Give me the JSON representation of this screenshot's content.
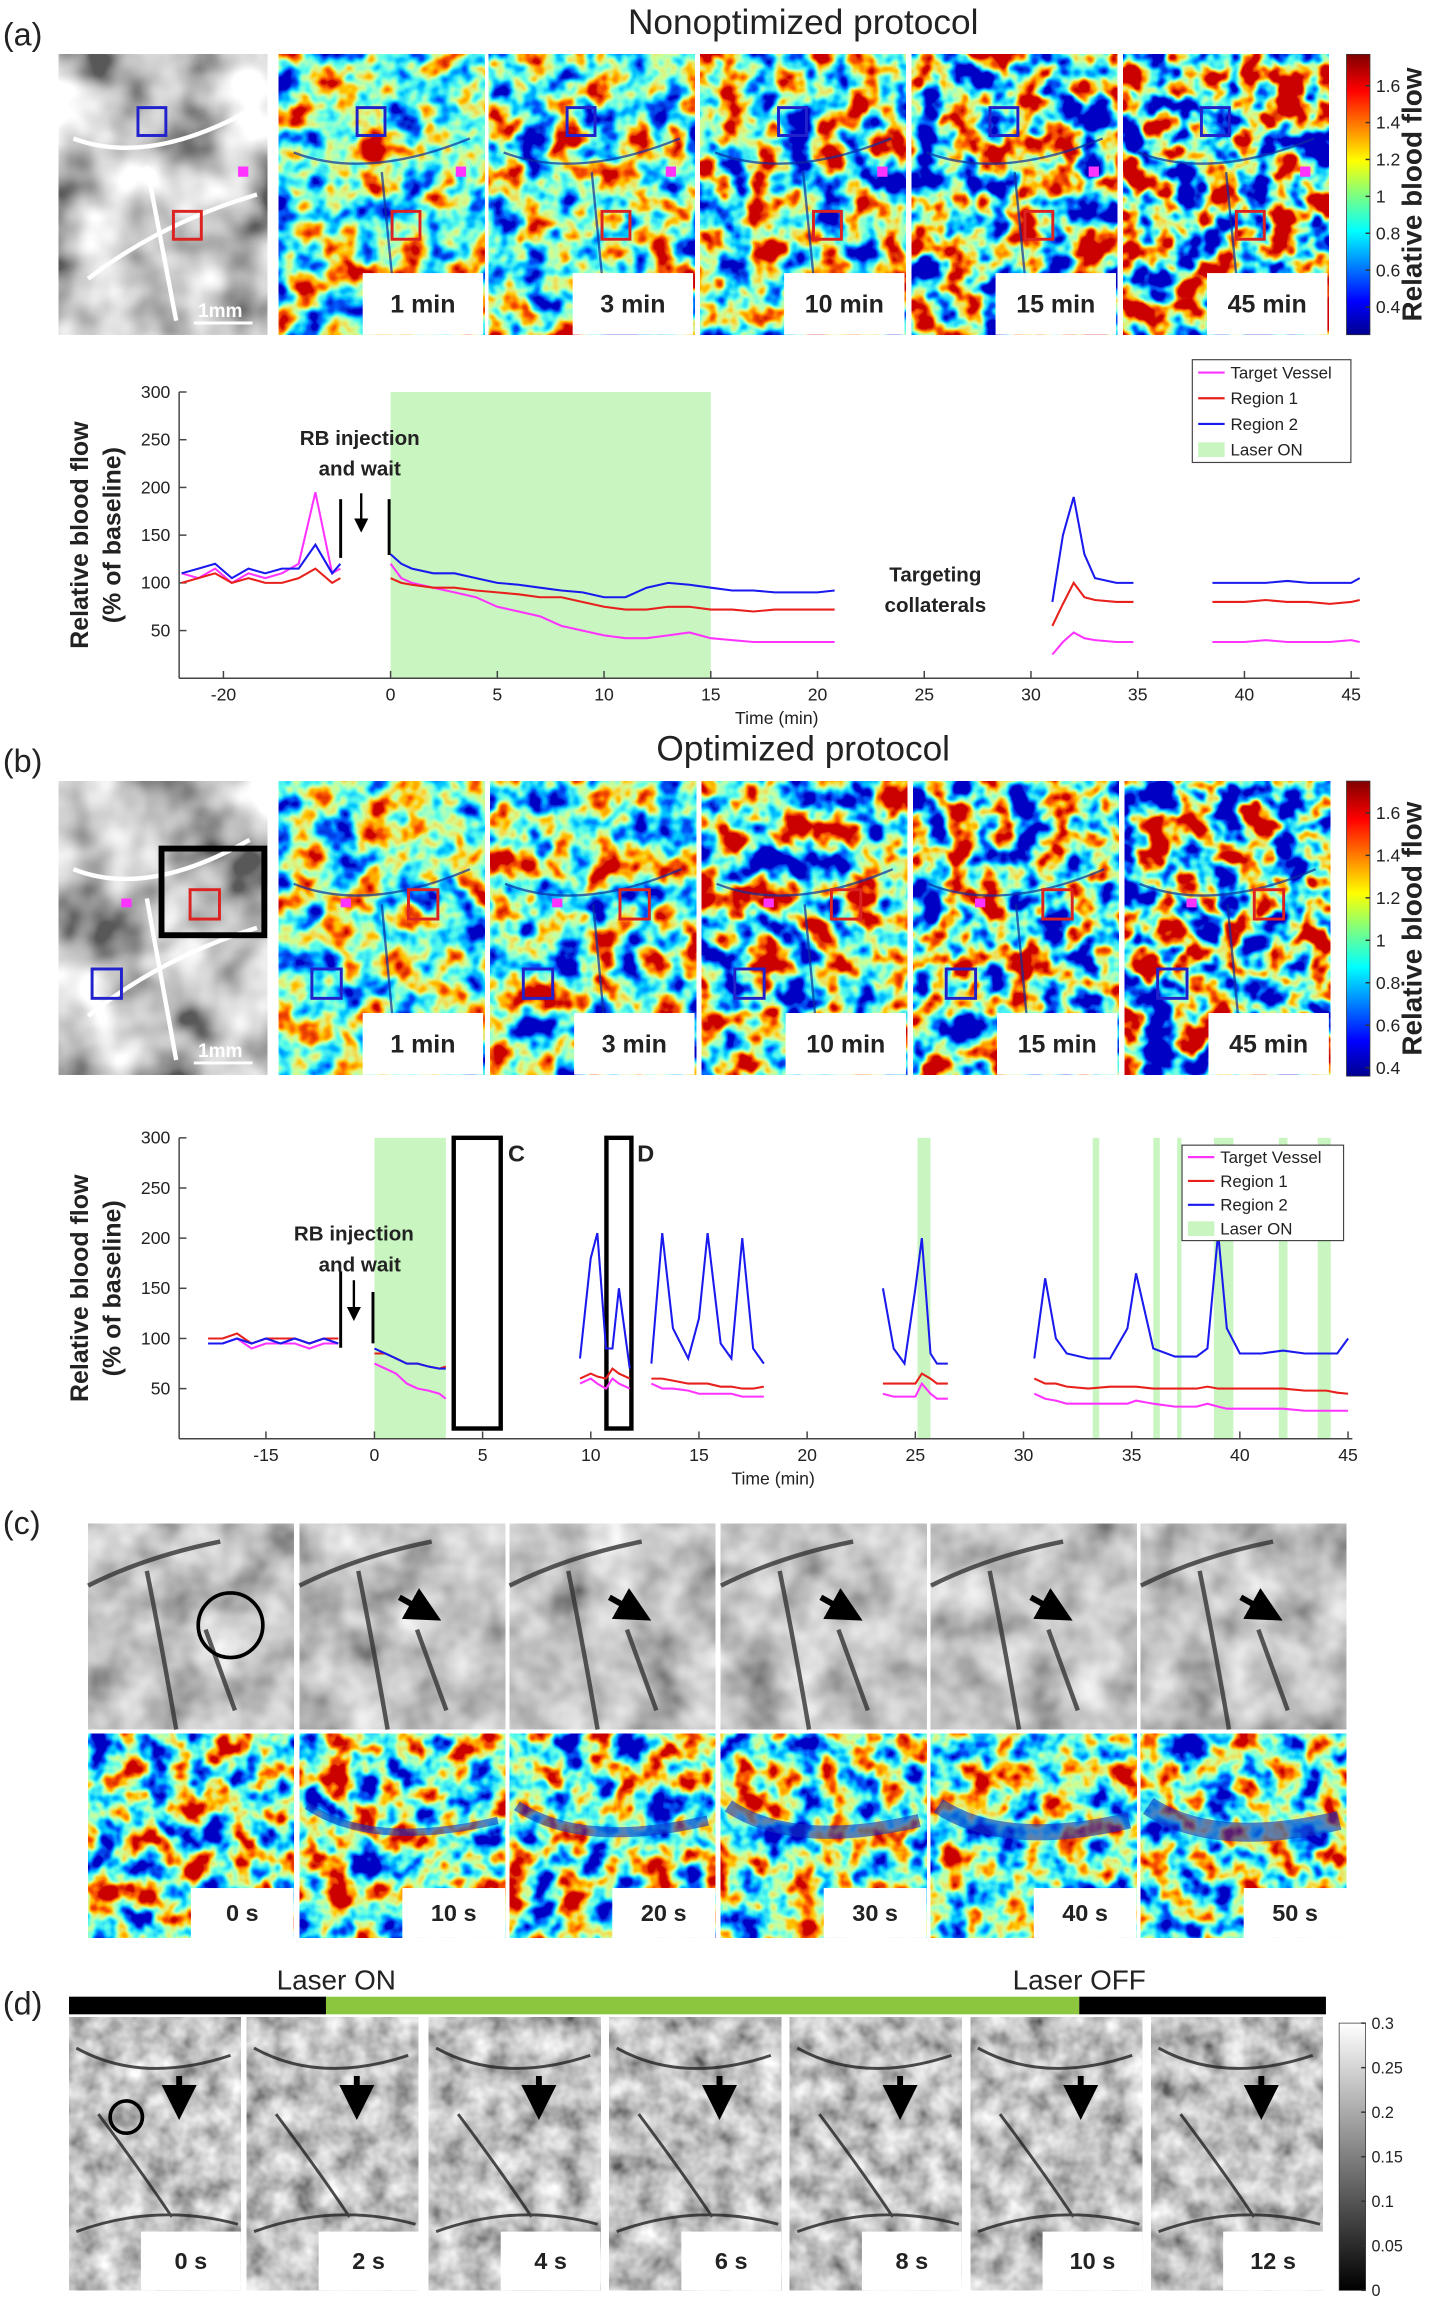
{
  "panel_a": {
    "label": "(a)",
    "title": "Nonoptimized protocol",
    "scale_bar": "1mm",
    "frames": [
      "1 min",
      "3 min",
      "10 min",
      "15 min",
      "45 min"
    ],
    "colorbar": {
      "label": "Relative blood flow",
      "lim": [
        0.25,
        1.77
      ],
      "ticks": [
        0.4,
        0.6,
        0.8,
        1,
        1.2,
        1.4,
        1.6
      ]
    }
  },
  "panel_b": {
    "label": "(b)",
    "title": "Optimized protocol",
    "scale_bar": "1mm",
    "frames": [
      "1 min",
      "3 min",
      "10 min",
      "15 min",
      "45 min"
    ],
    "colorbar": {
      "label": "Relative blood flow",
      "lim": [
        0.36,
        1.75
      ],
      "ticks": [
        0.4,
        0.6,
        0.8,
        1,
        1.2,
        1.4,
        1.6
      ]
    }
  },
  "panel_c": {
    "label": "(c)",
    "frames": [
      "0 s",
      "10 s",
      "20 s",
      "30 s",
      "40 s",
      "50 s"
    ]
  },
  "panel_d": {
    "label": "(d)",
    "bar_labels": [
      "Laser ON",
      "Laser OFF"
    ],
    "frames": [
      "0 s",
      "2 s",
      "4 s",
      "6 s",
      "8 s",
      "10 s",
      "12 s"
    ],
    "colorbar": {
      "lim": [
        0,
        0.3
      ],
      "ticks": [
        0,
        0.05,
        0.1,
        0.15,
        0.2,
        0.25,
        0.3
      ]
    }
  },
  "chart_data": [
    {
      "type": "line",
      "xlabel": "Time (min)",
      "ylabel": [
        "Relative blood flow",
        "(% of baseline)"
      ],
      "xlim": [
        -25.3,
        45.4
      ],
      "ylim": [
        0,
        300
      ],
      "xticks": [
        -20,
        0,
        5,
        10,
        15,
        20,
        25,
        30,
        35,
        40,
        45
      ],
      "yticks": [
        50,
        100,
        150,
        200,
        250,
        300
      ],
      "annotations": [
        "RB injection",
        "and wait",
        "Targeting",
        "collaterals"
      ],
      "x": [
        -25,
        -23,
        -21,
        -19,
        -17,
        -15,
        -13,
        -11,
        -9,
        -7,
        -6,
        null,
        0,
        0.5,
        1,
        2,
        3,
        4,
        5,
        6,
        7,
        8,
        9,
        10,
        11,
        12,
        13,
        14,
        15,
        16,
        17,
        18,
        19,
        20,
        20.8,
        null,
        31,
        31.5,
        32,
        32.5,
        33,
        34,
        34.8,
        null,
        38.5,
        40,
        41,
        42,
        43,
        44,
        45,
        45.4
      ],
      "series": [
        {
          "name": "Target Vessel",
          "color": "#ff33ff",
          "values": [
            110,
            105,
            115,
            100,
            110,
            105,
            110,
            120,
            195,
            110,
            115,
            null,
            120,
            105,
            100,
            95,
            90,
            85,
            75,
            70,
            65,
            55,
            50,
            45,
            42,
            42,
            45,
            48,
            42,
            40,
            38,
            38,
            38,
            38,
            38,
            null,
            25,
            38,
            48,
            42,
            40,
            38,
            38,
            null,
            38,
            38,
            40,
            38,
            38,
            38,
            40,
            38
          ]
        },
        {
          "name": "Region 1",
          "color": "#e8201c",
          "values": [
            100,
            105,
            110,
            100,
            105,
            100,
            100,
            105,
            115,
            100,
            105,
            null,
            105,
            100,
            98,
            95,
            95,
            92,
            90,
            88,
            85,
            85,
            80,
            75,
            72,
            72,
            75,
            75,
            72,
            72,
            70,
            72,
            72,
            72,
            72,
            null,
            55,
            78,
            100,
            85,
            82,
            80,
            80,
            null,
            80,
            80,
            82,
            80,
            80,
            78,
            80,
            82
          ]
        },
        {
          "name": "Region 2",
          "color": "#1a1aee",
          "values": [
            110,
            115,
            120,
            105,
            115,
            110,
            115,
            115,
            140,
            110,
            120,
            null,
            130,
            120,
            115,
            110,
            110,
            105,
            100,
            98,
            95,
            92,
            90,
            85,
            85,
            95,
            100,
            98,
            95,
            92,
            92,
            90,
            90,
            90,
            92,
            null,
            80,
            150,
            190,
            130,
            105,
            100,
            100,
            null,
            100,
            100,
            100,
            102,
            100,
            100,
            100,
            105
          ]
        }
      ],
      "shaded": {
        "name": "Laser ON",
        "color": "#c8f5c0",
        "spans": [
          [
            0,
            15
          ]
        ]
      }
    },
    {
      "type": "line",
      "xlabel": "Time (min)",
      "ylabel": [
        "Relative blood flow",
        "(% of baseline)"
      ],
      "xlim": [
        -27,
        45.2
      ],
      "ylim": [
        0,
        300
      ],
      "xticks": [
        -15,
        0,
        5,
        10,
        15,
        20,
        25,
        30,
        35,
        40,
        45
      ],
      "yticks": [
        50,
        100,
        150,
        200,
        250,
        300
      ],
      "annotations": [
        "RB injection",
        "and wait",
        "C",
        "D"
      ],
      "x": [
        -23,
        -21,
        -19,
        -17,
        -15,
        -13,
        -11,
        -9,
        -7,
        -5,
        null,
        0,
        0.5,
        1,
        1.5,
        2,
        2.5,
        3,
        3.3,
        null,
        9.5,
        10,
        10.3,
        10.7,
        11,
        11.3,
        11.8,
        null,
        12.8,
        13.3,
        13.8,
        14.5,
        15,
        15.4,
        16,
        16.5,
        17,
        17.5,
        18,
        null,
        23.5,
        24,
        24.5,
        25,
        25.3,
        25.7,
        26,
        26.5,
        null,
        30.5,
        31,
        31.5,
        32,
        33,
        34,
        34.8,
        35.2,
        36,
        37,
        38,
        38.5,
        39,
        39.4,
        40,
        41,
        42,
        43,
        44,
        44.5,
        45
      ],
      "series": [
        {
          "name": "Target Vessel",
          "color": "#ff33ff",
          "values": [
            95,
            95,
            100,
            90,
            95,
            95,
            95,
            90,
            95,
            95,
            null,
            75,
            70,
            65,
            55,
            50,
            48,
            45,
            40,
            null,
            55,
            60,
            55,
            50,
            60,
            55,
            50,
            null,
            55,
            50,
            50,
            48,
            45,
            45,
            45,
            45,
            42,
            42,
            42,
            null,
            45,
            42,
            42,
            42,
            55,
            45,
            40,
            40,
            null,
            45,
            40,
            38,
            35,
            35,
            35,
            35,
            38,
            35,
            32,
            32,
            35,
            32,
            30,
            30,
            30,
            30,
            28,
            28,
            28,
            28
          ]
        },
        {
          "name": "Region 1",
          "color": "#e8201c",
          "values": [
            100,
            100,
            105,
            95,
            100,
            100,
            100,
            95,
            100,
            100,
            null,
            85,
            85,
            80,
            75,
            75,
            72,
            70,
            72,
            null,
            60,
            65,
            62,
            60,
            70,
            65,
            60,
            null,
            60,
            60,
            58,
            55,
            55,
            55,
            52,
            52,
            50,
            50,
            52,
            null,
            55,
            55,
            55,
            55,
            65,
            60,
            55,
            55,
            null,
            60,
            55,
            55,
            52,
            50,
            52,
            52,
            52,
            50,
            50,
            50,
            52,
            50,
            50,
            50,
            50,
            50,
            48,
            48,
            46,
            45
          ]
        },
        {
          "name": "Region 2",
          "color": "#1a1aee",
          "values": [
            95,
            95,
            100,
            95,
            100,
            95,
            100,
            95,
            100,
            95,
            null,
            90,
            85,
            80,
            75,
            75,
            72,
            70,
            70,
            null,
            80,
            180,
            205,
            90,
            90,
            150,
            70,
            null,
            75,
            205,
            110,
            80,
            120,
            205,
            95,
            80,
            200,
            90,
            75,
            null,
            150,
            90,
            75,
            150,
            200,
            85,
            75,
            75,
            null,
            80,
            160,
            100,
            85,
            80,
            80,
            110,
            165,
            90,
            82,
            82,
            90,
            205,
            110,
            85,
            85,
            88,
            85,
            85,
            85,
            100
          ]
        }
      ],
      "shaded": {
        "name": "Laser ON",
        "color": "#c8f5c0",
        "spans": [
          [
            0,
            3.3
          ],
          [
            25.1,
            25.7
          ],
          [
            33.2,
            33.5
          ],
          [
            36,
            36.3
          ],
          [
            37.1,
            37.3
          ],
          [
            38.8,
            39.7
          ],
          [
            41.8,
            42.2
          ],
          [
            43.6,
            44.2
          ]
        ]
      }
    }
  ]
}
